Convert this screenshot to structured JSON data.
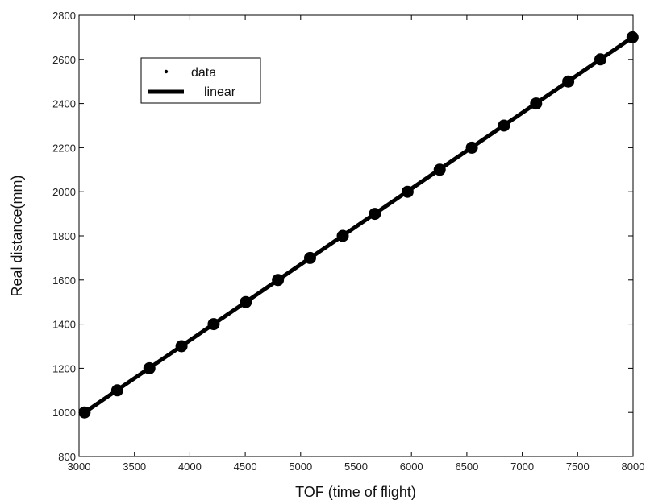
{
  "chart_data": {
    "type": "line",
    "xlabel": "TOF (time of flight)",
    "ylabel": "Real distance(mm)",
    "xlim": [
      3000,
      8000
    ],
    "ylim": [
      800,
      2800
    ],
    "xticks": [
      3000,
      3500,
      4000,
      4500,
      5000,
      5500,
      6000,
      6500,
      7000,
      7500,
      8000
    ],
    "yticks": [
      800,
      1000,
      1200,
      1400,
      1600,
      1800,
      2000,
      2200,
      2400,
      2600,
      2800
    ],
    "grid": false,
    "legend_position": "top-left",
    "series": [
      {
        "name": "data",
        "style": "markers",
        "color": "#000000",
        "x": [
          3050,
          3345,
          3635,
          3925,
          4215,
          4505,
          4795,
          5085,
          5380,
          5670,
          5965,
          6255,
          6545,
          6835,
          7125,
          7415,
          7705,
          7995
        ],
        "y": [
          1000,
          1100,
          1200,
          1300,
          1400,
          1500,
          1600,
          1700,
          1800,
          1900,
          2000,
          2100,
          2200,
          2300,
          2400,
          2500,
          2600,
          2700
        ]
      },
      {
        "name": "linear",
        "style": "line",
        "color": "#000000",
        "x": [
          3050,
          7995
        ],
        "y": [
          1000,
          2700
        ]
      }
    ]
  }
}
